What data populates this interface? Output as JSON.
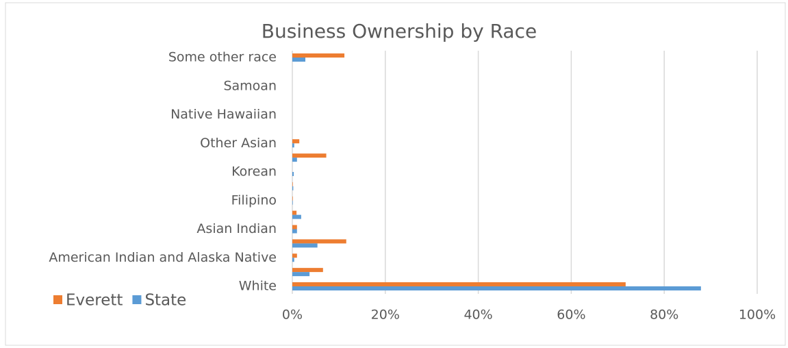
{
  "chart_data": {
    "type": "bar",
    "orientation": "horizontal",
    "title": "Business Ownership by Race",
    "categories": [
      "White",
      null,
      "American Indian and Alaska Native",
      null,
      "Asian Indian",
      null,
      "Filipino",
      null,
      "Korean",
      null,
      "Other Asian",
      null,
      "Native Hawaiian",
      null,
      "Samoan",
      null,
      "Some other race"
    ],
    "series": [
      {
        "name": "Everett",
        "color": "#ed7d31",
        "values": [
          71.7,
          6.6,
          1.0,
          11.6,
          1.0,
          0.9,
          0.1,
          0.1,
          0,
          7.3,
          1.5,
          0,
          0,
          0,
          0,
          0,
          11.2
        ]
      },
      {
        "name": "State",
        "color": "#5b9bd5",
        "values": [
          87.9,
          3.7,
          0.4,
          5.4,
          1.0,
          1.9,
          0.1,
          0.2,
          0.3,
          1.0,
          0.4,
          0,
          0,
          0,
          0,
          0,
          2.8
        ]
      }
    ],
    "xlim": [
      0,
      100
    ],
    "xticks": [
      {
        "value": 0,
        "label": "0%"
      },
      {
        "value": 20,
        "label": "20%"
      },
      {
        "value": 40,
        "label": "40%"
      },
      {
        "value": 60,
        "label": "60%"
      },
      {
        "value": 80,
        "label": "80%"
      },
      {
        "value": 100,
        "label": "100%"
      }
    ],
    "grid": true,
    "legend": "bottom-left"
  }
}
